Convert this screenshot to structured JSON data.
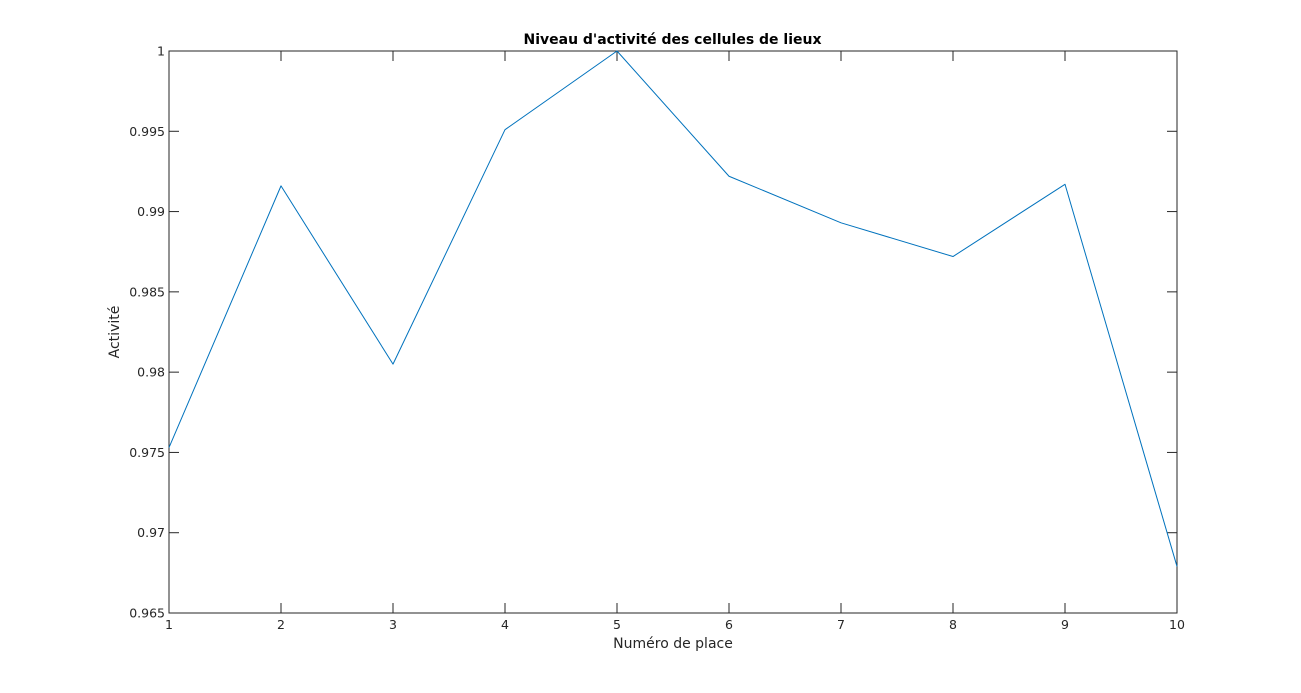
{
  "chart_data": {
    "type": "line",
    "title": "Niveau d'activité des cellules de lieux",
    "xlabel": "Numéro de place",
    "ylabel": "Activité",
    "x": [
      1,
      2,
      3,
      4,
      5,
      6,
      7,
      8,
      9,
      10
    ],
    "series": [
      {
        "values": [
          0.9753,
          0.9916,
          0.9805,
          0.9951,
          1.0,
          0.9922,
          0.9893,
          0.9872,
          0.9917,
          0.9679
        ],
        "color": "#0072BD"
      }
    ],
    "xlim": [
      1,
      10
    ],
    "ylim": [
      0.965,
      1
    ],
    "xticks": [
      1,
      2,
      3,
      4,
      5,
      6,
      7,
      8,
      9,
      10
    ],
    "xtick_labels": [
      "1",
      "2",
      "3",
      "4",
      "5",
      "6",
      "7",
      "8",
      "9",
      "10"
    ],
    "yticks": [
      0.965,
      0.97,
      0.975,
      0.98,
      0.985,
      0.99,
      0.995,
      1
    ],
    "ytick_labels": [
      "0.965",
      "0.97",
      "0.975",
      "0.98",
      "0.985",
      "0.99",
      "0.995",
      "1"
    ],
    "grid": false,
    "legend": "none",
    "axis_color": "#262626"
  }
}
